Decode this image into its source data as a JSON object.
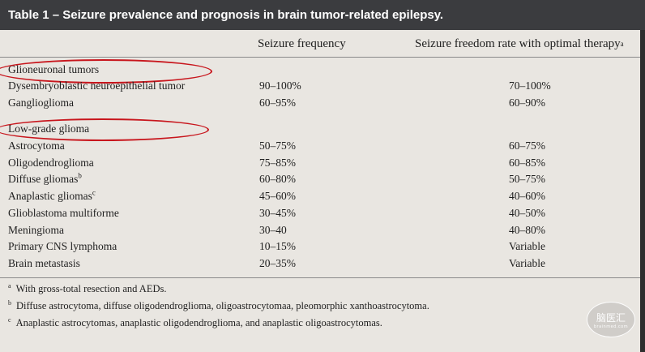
{
  "title": "Table 1 – Seizure prevalence and prognosis in brain tumor-related epilepsy.",
  "headers": {
    "frequency": "Seizure frequency",
    "freedom": "Seizure freedom rate with optimal therapy",
    "freedom_mark": "a"
  },
  "sections": [
    {
      "label": "Glioneuronal tumors",
      "rows": [
        {
          "name": "Dysembryoblastic neuroepithelial tumor",
          "mark": "",
          "freq": "90–100%",
          "free": "70–100%"
        },
        {
          "name": "Ganglioglioma",
          "mark": "",
          "freq": "60–95%",
          "free": "60–90%"
        }
      ]
    },
    {
      "label": "Low-grade glioma",
      "rows": [
        {
          "name": "Astrocytoma",
          "mark": "",
          "freq": "50–75%",
          "free": "60–75%"
        },
        {
          "name": "Oligodendroglioma",
          "mark": "",
          "freq": "75–85%",
          "free": "60–85%"
        },
        {
          "name": "Diffuse gliomas",
          "mark": "b",
          "freq": "60–80%",
          "free": "50–75%"
        },
        {
          "name": "Anaplastic gliomas",
          "mark": "c",
          "freq": "45–60%",
          "free": "40–60%"
        },
        {
          "name": "Glioblastoma multiforme",
          "mark": "",
          "freq": "30–45%",
          "free": "40–50%"
        },
        {
          "name": "Meningioma",
          "mark": "",
          "freq": "30–40",
          "free": "40–80%"
        },
        {
          "name": "Primary CNS lymphoma",
          "mark": "",
          "freq": "10–15%",
          "free": "Variable"
        },
        {
          "name": "Brain metastasis",
          "mark": "",
          "freq": "20–35%",
          "free": "Variable"
        }
      ]
    }
  ],
  "footnotes": [
    {
      "mark": "a",
      "text": "With gross-total resection and AEDs."
    },
    {
      "mark": "b",
      "text": "Diffuse astrocytoma, diffuse oligodendroglioma, oligoastrocytomaa, pleomorphic xanthoastrocytoma."
    },
    {
      "mark": "c",
      "text": "Anaplastic astrocytomas, anaplastic oligodendroglioma, and anaplastic oligoastrocytomas."
    }
  ],
  "watermark": {
    "text": "脑医汇",
    "sub": "brainmed.com"
  },
  "annotation_color": "#c8161d"
}
